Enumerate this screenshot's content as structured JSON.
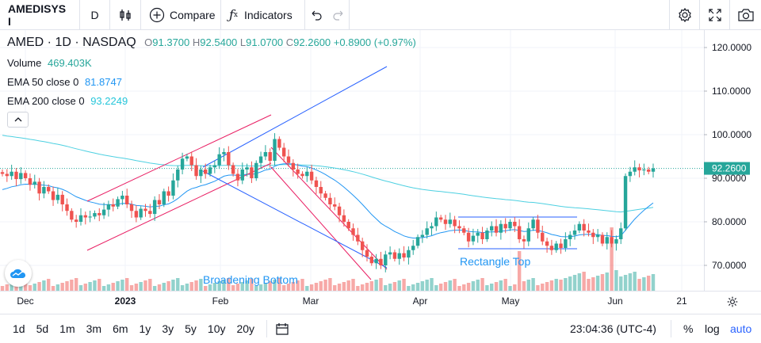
{
  "toolbar": {
    "symbol": "AMEDISYS I",
    "interval": "D",
    "compare_label": "Compare",
    "indicators_label": "Indicators",
    "icons": [
      "bar-style-icon",
      "plus-circle-icon",
      "fx-icon",
      "undo-icon",
      "redo-icon",
      "settings-icon",
      "fullscreen-icon",
      "camera-icon"
    ]
  },
  "legend": {
    "title": "AMED · 1D · NASDAQ",
    "o_label": "O",
    "o": "91.3700",
    "h_label": "H",
    "h": "92.5400",
    "l_label": "L",
    "l": "91.0700",
    "c_label": "C",
    "c": "92.2600",
    "change": "+0.8900 (+0.97%)",
    "volume_label": "Volume",
    "volume": "469.403K",
    "ema50_label": "EMA 50 close 0",
    "ema50": "81.8747",
    "ema200_label": "EMA 200 close 0",
    "ema200": "93.2249"
  },
  "annotations": {
    "broadening_bottom": "Broadening Bottom",
    "rectangle_top": "Rectangle Top"
  },
  "price_axis": {
    "ticks": [
      "120.0000",
      "110.0000",
      "100.0000",
      "90.0000",
      "80.0000",
      "70.0000"
    ],
    "last_price": "92.2600"
  },
  "time_axis": {
    "ticks": [
      "Dec",
      "2023",
      "Feb",
      "Mar",
      "Apr",
      "May",
      "Jun",
      "21"
    ]
  },
  "bottom": {
    "ranges": [
      "1d",
      "5d",
      "1m",
      "3m",
      "6m",
      "1y",
      "3y",
      "5y",
      "10y",
      "20y"
    ],
    "time": "23:04:36 (UTC-4)",
    "percent": "%",
    "log": "log",
    "auto": "auto"
  },
  "colors": {
    "up": "#26a69a",
    "down": "#ef5350",
    "ema50": "#2196f3",
    "ema200": "#4dd0e1",
    "pattern": "#e91e63",
    "trendline": "#2962ff"
  },
  "chart_data": {
    "type": "candlestick",
    "symbol": "AMED",
    "interval": "1D",
    "exchange": "NASDAQ",
    "ylim": [
      66,
      124
    ],
    "y_ticks": [
      120,
      110,
      100,
      90,
      80,
      70
    ],
    "x_ticks": [
      "Dec",
      "2023",
      "Feb",
      "Mar",
      "Apr",
      "May",
      "Jun",
      "21"
    ],
    "close_series": [
      91.0,
      90.5,
      91.5,
      89.8,
      91.2,
      90.0,
      88.5,
      89.2,
      86.5,
      88.0,
      87.0,
      85.0,
      86.2,
      84.0,
      82.5,
      80.5,
      80.0,
      81.5,
      81.0,
      81.2,
      82.0,
      81.5,
      82.8,
      84.0,
      83.5,
      85.2,
      86.0,
      84.0,
      82.5,
      81.0,
      83.0,
      82.5,
      81.8,
      85.0,
      84.0,
      87.0,
      86.0,
      89.5,
      92.0,
      94.5,
      95.0,
      93.0,
      90.5,
      92.0,
      91.0,
      92.5,
      93.0,
      95.5,
      96.0,
      93.0,
      91.0,
      89.5,
      92.0,
      92.5,
      90.0,
      93.5,
      95.0,
      96.0,
      94.0,
      99.0,
      97.0,
      95.0,
      93.5,
      92.0,
      91.0,
      90.5,
      91.5,
      89.5,
      88.0,
      86.5,
      85.5,
      84.0,
      83.5,
      81.5,
      80.0,
      78.5,
      77.0,
      75.5,
      73.5,
      72.0,
      70.5,
      71.5,
      70.0,
      72.5,
      73.0,
      71.5,
      72.8,
      71.8,
      73.5,
      74.5,
      76.5,
      77.0,
      78.5,
      79.0,
      81.0,
      80.5,
      79.5,
      80.5,
      79.0,
      78.5,
      77.5,
      75.5,
      76.8,
      77.5,
      76.0,
      78.0,
      79.0,
      77.5,
      79.5,
      78.5,
      80.0,
      79.0,
      76.0,
      75.5,
      78.5,
      80.5,
      77.5,
      75.5,
      74.5,
      73.5,
      75.0,
      74.0,
      76.0,
      77.0,
      78.0,
      79.5,
      78.0,
      77.5,
      76.5,
      77.0,
      75.0,
      76.5,
      75.0,
      76.0,
      78.5,
      90.5,
      91.5,
      92.5,
      91.8,
      92.0,
      91.5,
      92.26
    ],
    "volume": {
      "last": "469.403K"
    },
    "ema50": {
      "last": 81.8747
    },
    "ema200": {
      "last": 93.2249
    },
    "last_price": 92.26,
    "annotations": [
      "Broadening Bottom",
      "Rectangle Top"
    ]
  }
}
